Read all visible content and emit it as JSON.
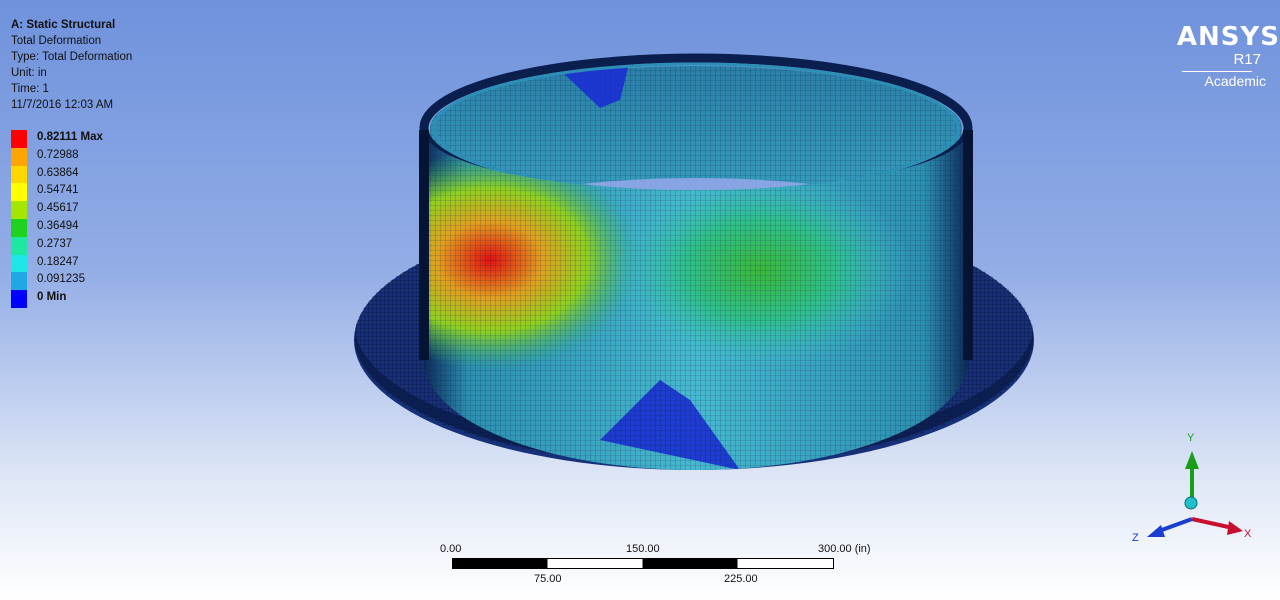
{
  "info": {
    "title": "A: Static Structural",
    "result": "Total Deformation",
    "type": "Type: Total Deformation",
    "unit": "Unit: in",
    "time": "Time: 1",
    "timestamp": "11/7/2016 12:03 AM"
  },
  "legend": {
    "entries": [
      {
        "label": "0.82111 Max",
        "color": "#ff0000",
        "bold": true
      },
      {
        "label": "0.72988",
        "color": "#ffa500",
        "bold": false
      },
      {
        "label": "0.63864",
        "color": "#ffd700",
        "bold": false
      },
      {
        "label": "0.54741",
        "color": "#ffff00",
        "bold": false
      },
      {
        "label": "0.45617",
        "color": "#a5e600",
        "bold": false
      },
      {
        "label": "0.36494",
        "color": "#1fd21f",
        "bold": false
      },
      {
        "label": "0.2737",
        "color": "#1fe6a0",
        "bold": false
      },
      {
        "label": "0.18247",
        "color": "#1ee6e6",
        "bold": false
      },
      {
        "label": "0.091235",
        "color": "#1ea8e6",
        "bold": false
      },
      {
        "label": "0 Min",
        "color": "#0000ff",
        "bold": true
      }
    ]
  },
  "logo": {
    "name": "ANSYS",
    "version": "R17",
    "edition": "Academic"
  },
  "scale_bar": {
    "top_labels": [
      "0.00",
      "150.00",
      "300.00 (in)"
    ],
    "bottom_labels": [
      "75.00",
      "225.00"
    ]
  },
  "triad": {
    "x_label": "X",
    "y_label": "Y",
    "z_label": "Z",
    "x_color": "#c8102e",
    "y_color": "#1a9e1a",
    "z_color": "#1a3ecf"
  }
}
